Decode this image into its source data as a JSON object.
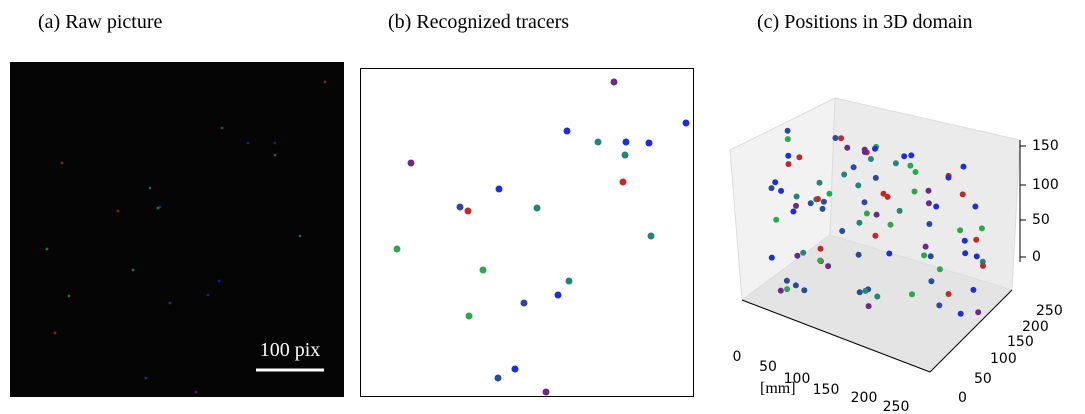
{
  "panels": [
    {
      "title": "(a) Raw picture",
      "scale_bar": "100 pix"
    },
    {
      "title": "(b) Recognized tracers"
    },
    {
      "title": "(c) Positions in 3D domain",
      "unit": "[mm]",
      "x_ticks": [
        0,
        50,
        100,
        150,
        200,
        250
      ],
      "y_ticks": [
        0,
        50,
        100,
        150,
        200,
        250
      ],
      "z_ticks": [
        0,
        50,
        100,
        150
      ]
    }
  ]
}
